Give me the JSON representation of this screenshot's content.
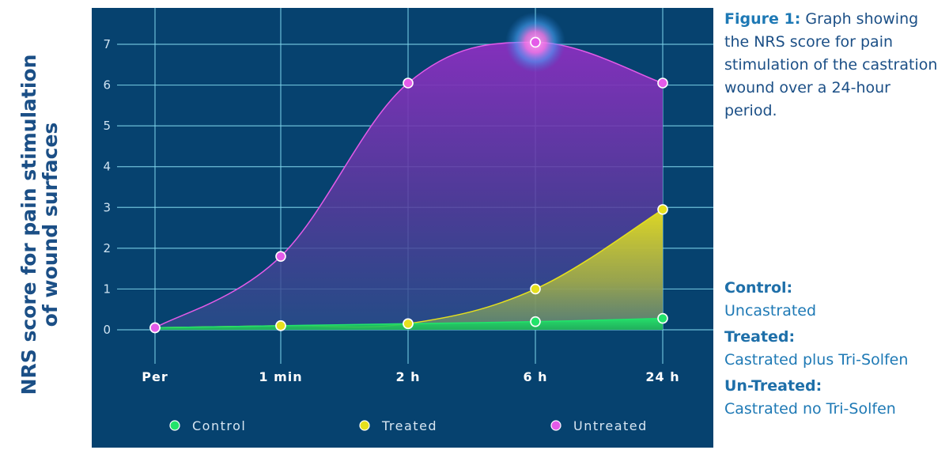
{
  "y_axis_label": {
    "line1": "NRS score for pain stimulation",
    "line2": "of wound surfaces"
  },
  "caption": {
    "figure_label": "Figure 1:",
    "text": "Graph showing the NRS score for pain stimulation of the castration wound over a 24-hour period."
  },
  "groups": [
    {
      "name": "Control:",
      "description": "Uncastrated"
    },
    {
      "name": "Treated:",
      "description": "Castrated plus Tri-Solfen"
    },
    {
      "name": "Un-Treated:",
      "description": "Castrated no Tri-Solfen"
    }
  ],
  "colors": {
    "background": "#06426f",
    "grid": "#7fd3ea",
    "control": "#22e36a",
    "treated": "#e6e01e",
    "untreated": "#e45be8",
    "text_dark_blue": "#1b4f86",
    "text_blue": "#1e79b5"
  },
  "chart_data": {
    "type": "area",
    "categories": [
      "Per",
      "1 min",
      "2 h",
      "6 h",
      "24 h"
    ],
    "ylim": [
      0,
      7
    ],
    "yticks": [
      "0",
      "1",
      "2",
      "3",
      "4",
      "5",
      "6",
      "7"
    ],
    "grid": true,
    "legend_position": "bottom",
    "series": [
      {
        "name": "Control",
        "color": "#22e36a",
        "values": [
          0.05,
          0.1,
          0.15,
          0.2,
          0.28
        ]
      },
      {
        "name": "Treated",
        "color": "#e6e01e",
        "values": [
          0.05,
          0.1,
          0.15,
          1.0,
          2.95
        ]
      },
      {
        "name": "Untreated",
        "color": "#e45be8",
        "values": [
          0.05,
          1.8,
          6.05,
          7.05,
          6.05
        ]
      }
    ],
    "highlight": {
      "series": "Untreated",
      "category": "6 h"
    }
  }
}
